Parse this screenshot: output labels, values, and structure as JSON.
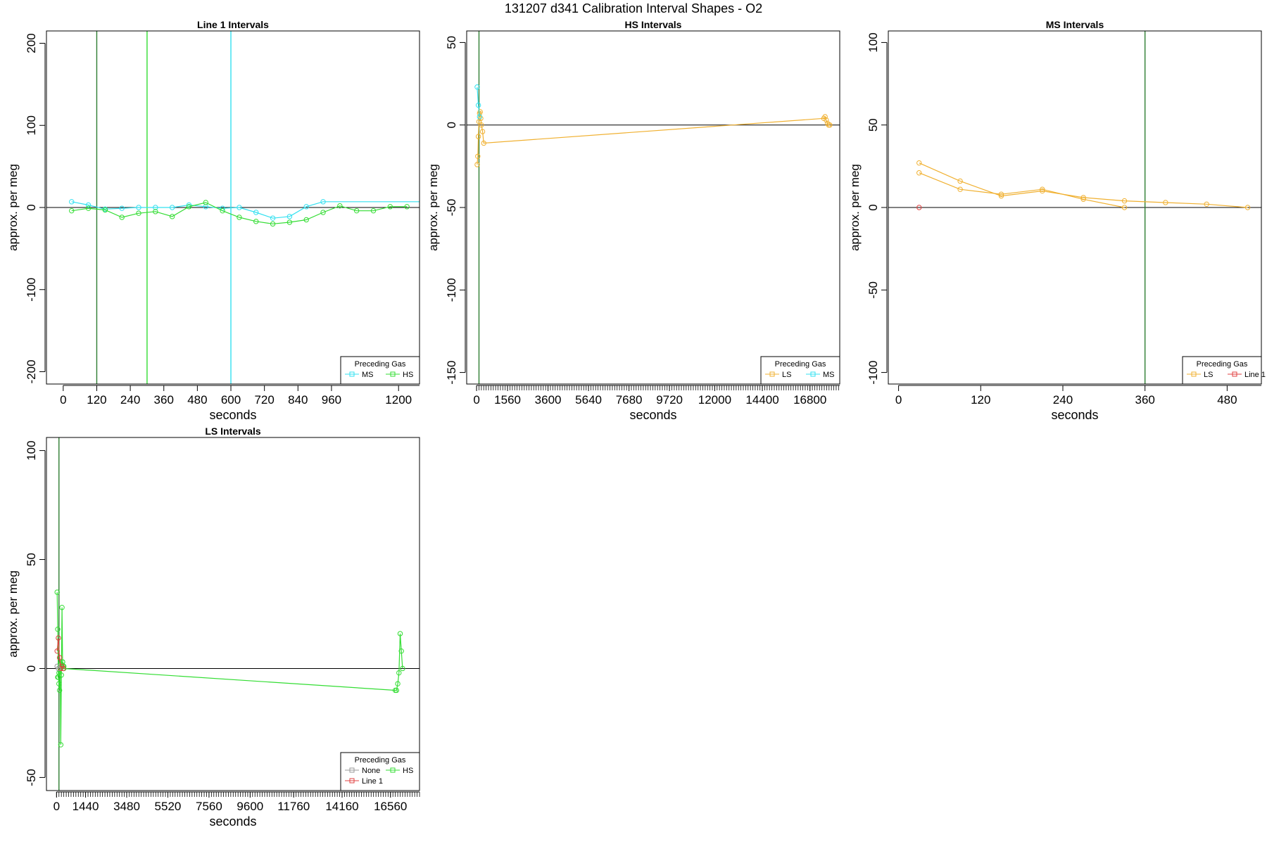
{
  "page_title": "131207   d341   Calibration Interval Shapes - O2",
  "colors": {
    "MS": "#33e0f0",
    "HS": "#33dd33",
    "LS": "#f0b030",
    "Line 1": "#e04040",
    "None": "#999999",
    "vline": "#2e7d32",
    "zero": "#000000"
  },
  "chart_data": [
    {
      "type": "line",
      "title": "Line 1 Intervals",
      "xlabel": "seconds",
      "ylabel": "approx. per meg",
      "xlim": [
        -60,
        1275
      ],
      "ylim": [
        -215,
        215
      ],
      "xticks": [
        "0",
        "120",
        "240",
        "360",
        "480",
        "600",
        "720",
        "840",
        "960",
        "1200"
      ],
      "xtick_values": [
        0,
        120,
        240,
        360,
        480,
        600,
        720,
        840,
        960,
        1200
      ],
      "yticks": [
        "-200",
        "-100",
        "0",
        "100",
        "200"
      ],
      "ytick_values": [
        -200,
        -100,
        0,
        100,
        200
      ],
      "vlines": [
        {
          "x": 120,
          "color": "#2e7d32"
        },
        {
          "x": 300,
          "color": "#33dd33"
        },
        {
          "x": 600,
          "color": "#33e0f0"
        }
      ],
      "legend": {
        "title": "Preceding Gas",
        "position": "bottom-right",
        "columns": 2,
        "entries": [
          "MS",
          "HS"
        ]
      },
      "series": [
        {
          "name": "MS",
          "color": "#33e0f0",
          "x": [
            30,
            90,
            150,
            210,
            270,
            330,
            390,
            450,
            510,
            570,
            630,
            690,
            750,
            810,
            870,
            930,
            1290
          ],
          "y": [
            7,
            3,
            -2,
            -1,
            0,
            0,
            0,
            3,
            1,
            -1,
            0,
            -6,
            -13,
            -11,
            1,
            7,
            7
          ]
        },
        {
          "name": "HS",
          "color": "#33dd33",
          "x": [
            30,
            90,
            150,
            210,
            270,
            330,
            390,
            450,
            510,
            570,
            630,
            690,
            750,
            810,
            870,
            930,
            990,
            1050,
            1110,
            1170,
            1230
          ],
          "y": [
            -4,
            -1,
            -3,
            -12,
            -7,
            -5,
            -11,
            1,
            6,
            -4,
            -12,
            -17,
            -20,
            -18,
            -15,
            -6,
            2,
            -4,
            -4,
            1,
            1
          ]
        }
      ]
    },
    {
      "type": "line",
      "title": "HS Intervals",
      "xlabel": "seconds",
      "ylabel": "approx. per meg",
      "xlim": [
        -500,
        18300
      ],
      "ylim": [
        -157,
        57
      ],
      "xticks": [
        "0",
        "1560",
        "3600",
        "5640",
        "7680",
        "9720",
        "12000",
        "14400",
        "16800"
      ],
      "xtick_values": [
        0,
        1560,
        3600,
        5640,
        7680,
        9720,
        12000,
        14400,
        16800
      ],
      "minor_xtick_step": 120,
      "yticks": [
        "-150",
        "-100",
        "-50",
        "0",
        "50"
      ],
      "ytick_values": [
        -150,
        -100,
        -50,
        0,
        50
      ],
      "vlines": [
        {
          "x": 120,
          "color": "#2e7d32"
        }
      ],
      "legend": {
        "title": "Preceding Gas",
        "position": "bottom-right",
        "columns": 2,
        "entries": [
          "LS",
          "MS"
        ]
      },
      "series": [
        {
          "name": "LS",
          "color": "#f0b030",
          "x": [
            30,
            60,
            90,
            120,
            150,
            180,
            210,
            240,
            300,
            360,
            17500,
            17560,
            17620,
            17680,
            17740,
            17800
          ],
          "y": [
            -24,
            -19,
            -7,
            2,
            7,
            8,
            4,
            0,
            -4,
            -11,
            4,
            5,
            3,
            1,
            0,
            0
          ]
        },
        {
          "name": "MS",
          "color": "#33e0f0",
          "x": [
            30,
            90,
            150
          ],
          "y": [
            23,
            12,
            5
          ]
        }
      ]
    },
    {
      "type": "line",
      "title": "MS Intervals",
      "xlabel": "seconds",
      "ylabel": "approx. per meg",
      "xlim": [
        -15,
        530
      ],
      "ylim": [
        -107,
        107
      ],
      "xticks": [
        "0",
        "120",
        "240",
        "360",
        "480"
      ],
      "xtick_values": [
        0,
        120,
        240,
        360,
        480
      ],
      "yticks": [
        "-100",
        "-50",
        "0",
        "50",
        "100"
      ],
      "ytick_values": [
        -100,
        -50,
        0,
        50,
        100
      ],
      "vlines": [
        {
          "x": 360,
          "color": "#2e7d32"
        }
      ],
      "legend": {
        "title": "Preceding Gas",
        "position": "bottom-right",
        "columns": 2,
        "entries": [
          "LS",
          "Line 1"
        ]
      },
      "series": [
        {
          "name": "LS",
          "color": "#f0b030",
          "x": [
            30,
            90,
            150,
            210,
            270,
            330,
            390,
            450,
            510
          ],
          "y": [
            27,
            16,
            7,
            10,
            6,
            4,
            3,
            2,
            0
          ]
        },
        {
          "name": "LS",
          "color": "#f0b030",
          "x": [
            30,
            90,
            150,
            210,
            270,
            330
          ],
          "y": [
            21,
            11,
            8,
            11,
            5,
            0
          ]
        },
        {
          "name": "Line 1",
          "color": "#e04040",
          "x": [
            30
          ],
          "y": [
            0
          ]
        }
      ]
    },
    {
      "type": "line",
      "title": "LS Intervals",
      "xlabel": "seconds",
      "ylabel": "approx. per meg",
      "xlim": [
        -500,
        18000
      ],
      "ylim": [
        -56,
        106
      ],
      "xticks": [
        "0",
        "1440",
        "3480",
        "5520",
        "7560",
        "9600",
        "11760",
        "14160",
        "16560"
      ],
      "xtick_values": [
        0,
        1440,
        3480,
        5520,
        7560,
        9600,
        11760,
        14160,
        16560
      ],
      "minor_xtick_step": 120,
      "yticks": [
        "-50",
        "0",
        "50",
        "100"
      ],
      "ytick_values": [
        -50,
        0,
        50,
        100
      ],
      "vlines": [
        {
          "x": 120,
          "color": "#2e7d32"
        }
      ],
      "legend": {
        "title": "Preceding Gas",
        "position": "bottom-right",
        "columns": 2,
        "entries": [
          "None",
          "HS",
          "Line 1"
        ]
      },
      "series": [
        {
          "name": "HS",
          "color": "#33dd33",
          "x": [
            30,
            60,
            90,
            120,
            150,
            180,
            210,
            240,
            270,
            300,
            330,
            360,
            16800,
            16860,
            16920,
            16980,
            17040,
            17100,
            17160
          ],
          "y": [
            35,
            18,
            -4,
            -7,
            -10,
            2,
            -35,
            -3,
            28,
            3,
            1,
            0,
            -10,
            -10,
            -7,
            -2,
            16,
            8,
            0
          ]
        },
        {
          "name": "HS",
          "color": "#33dd33",
          "x": [
            60,
            120,
            180,
            240,
            300,
            360
          ],
          "y": [
            -4,
            -2,
            0,
            2,
            3,
            1
          ]
        },
        {
          "name": "Line 1",
          "color": "#e04040",
          "x": [
            30,
            90,
            150,
            210,
            270,
            330
          ],
          "y": [
            8,
            14,
            5,
            0,
            1,
            0
          ]
        },
        {
          "name": "None",
          "color": "#999999",
          "x": [
            30,
            90
          ],
          "y": [
            1,
            0
          ]
        }
      ]
    }
  ]
}
